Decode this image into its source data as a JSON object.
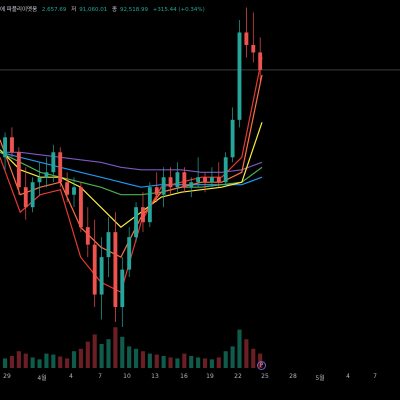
{
  "header": {
    "title_fragment": "에 파플리이멧움",
    "open": "2,657.69",
    "high_label": "저",
    "high": "91,060.01",
    "close_label": "종",
    "close": "92,518.99",
    "change": "+315.44 (+0.34%)"
  },
  "chart_data": {
    "type": "line",
    "title": "",
    "x_ticks": [
      "29",
      "4월",
      "4",
      "7",
      "10",
      "13",
      "16",
      "19",
      "22",
      "25",
      "28",
      "5월",
      "4",
      "7"
    ],
    "ma_lines": [
      {
        "color": "#7e57c2",
        "values": [
          0.72,
          0.72,
          0.71,
          0.7,
          0.69,
          0.68,
          0.66,
          0.65,
          0.65,
          0.65,
          0.64,
          0.64,
          0.65,
          0.68
        ]
      },
      {
        "color": "#2196f3",
        "values": [
          0.72,
          0.7,
          0.68,
          0.66,
          0.64,
          0.62,
          0.6,
          0.58,
          0.59,
          0.59,
          0.59,
          0.59,
          0.59,
          0.62
        ]
      },
      {
        "color": "#4caf50",
        "values": [
          0.72,
          0.68,
          0.64,
          0.62,
          0.6,
          0.58,
          0.55,
          0.55,
          0.56,
          0.58,
          0.58,
          0.59,
          0.6,
          0.66
        ]
      },
      {
        "color": "#ffeb3b",
        "values": [
          0.73,
          0.65,
          0.62,
          0.62,
          0.58,
          0.5,
          0.42,
          0.48,
          0.54,
          0.56,
          0.57,
          0.58,
          0.6,
          0.84
        ]
      },
      {
        "color": "#ff7043",
        "values": [
          0.77,
          0.55,
          0.58,
          0.6,
          0.42,
          0.34,
          0.3,
          0.46,
          0.56,
          0.58,
          0.6,
          0.6,
          0.64,
          1.03
        ]
      },
      {
        "color": "#e53935",
        "values": [
          0.7,
          0.48,
          0.55,
          0.57,
          0.3,
          0.2,
          0.16,
          0.44,
          0.58,
          0.6,
          0.62,
          0.62,
          0.7,
          1.1
        ]
      }
    ],
    "price_line": 1.05,
    "candles": [
      [
        0.7,
        0.8,
        0.65,
        0.78
      ],
      [
        0.78,
        0.82,
        0.7,
        0.72
      ],
      [
        0.72,
        0.74,
        0.55,
        0.58
      ],
      [
        0.58,
        0.66,
        0.45,
        0.5
      ],
      [
        0.5,
        0.62,
        0.48,
        0.6
      ],
      [
        0.6,
        0.68,
        0.55,
        0.62
      ],
      [
        0.62,
        0.7,
        0.58,
        0.64
      ],
      [
        0.64,
        0.75,
        0.6,
        0.72
      ],
      [
        0.72,
        0.74,
        0.58,
        0.6
      ],
      [
        0.6,
        0.64,
        0.52,
        0.55
      ],
      [
        0.55,
        0.62,
        0.5,
        0.58
      ],
      [
        0.58,
        0.6,
        0.4,
        0.42
      ],
      [
        0.42,
        0.5,
        0.3,
        0.35
      ],
      [
        0.35,
        0.45,
        0.1,
        0.15
      ],
      [
        0.15,
        0.38,
        0.05,
        0.3
      ],
      [
        0.3,
        0.46,
        0.22,
        0.4
      ],
      [
        0.4,
        0.48,
        0.04,
        0.1
      ],
      [
        0.1,
        0.3,
        0.02,
        0.25
      ],
      [
        0.25,
        0.42,
        0.22,
        0.38
      ],
      [
        0.38,
        0.52,
        0.36,
        0.5
      ],
      [
        0.5,
        0.56,
        0.4,
        0.44
      ],
      [
        0.44,
        0.6,
        0.42,
        0.58
      ],
      [
        0.58,
        0.64,
        0.52,
        0.55
      ],
      [
        0.55,
        0.66,
        0.5,
        0.62
      ],
      [
        0.62,
        0.66,
        0.55,
        0.58
      ],
      [
        0.58,
        0.68,
        0.56,
        0.64
      ],
      [
        0.64,
        0.66,
        0.56,
        0.58
      ],
      [
        0.58,
        0.62,
        0.54,
        0.6
      ],
      [
        0.6,
        0.7,
        0.58,
        0.62
      ],
      [
        0.62,
        0.64,
        0.56,
        0.6
      ],
      [
        0.6,
        0.66,
        0.58,
        0.62
      ],
      [
        0.62,
        0.68,
        0.58,
        0.6
      ],
      [
        0.6,
        0.72,
        0.58,
        0.7
      ],
      [
        0.7,
        0.9,
        0.68,
        0.85
      ],
      [
        0.85,
        1.25,
        0.82,
        1.2
      ],
      [
        1.2,
        1.3,
        1.1,
        1.15
      ],
      [
        1.15,
        1.28,
        1.08,
        1.12
      ],
      [
        1.12,
        1.18,
        1.0,
        1.05
      ]
    ],
    "volumes": [
      0.2,
      0.25,
      0.35,
      0.3,
      0.22,
      0.18,
      0.3,
      0.28,
      0.24,
      0.2,
      0.35,
      0.4,
      0.55,
      0.7,
      0.5,
      0.6,
      0.85,
      0.65,
      0.45,
      0.4,
      0.35,
      0.3,
      0.28,
      0.25,
      0.22,
      0.2,
      0.3,
      0.25,
      0.22,
      0.2,
      0.18,
      0.22,
      0.35,
      0.45,
      0.8,
      0.6,
      0.4,
      0.3
    ],
    "xlabel": "",
    "ylabel": ""
  },
  "badge": {
    "label": "P"
  }
}
